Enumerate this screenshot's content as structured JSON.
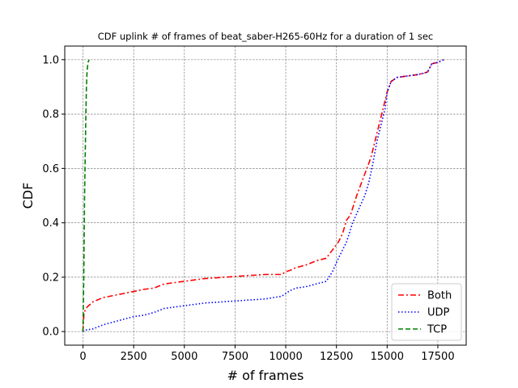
{
  "chart_data": {
    "type": "line",
    "title": "CDF uplink # of frames of beat_saber-H265-60Hz for a duration of 1 sec",
    "xlabel": "# of frames",
    "ylabel": "CDF",
    "xlim": [
      -900,
      18900
    ],
    "ylim": [
      -0.05,
      1.05
    ],
    "xticks": [
      0,
      2500,
      5000,
      7500,
      10000,
      12500,
      15000,
      17500
    ],
    "xtick_labels": [
      "0",
      "2500",
      "5000",
      "7500",
      "10000",
      "12500",
      "15000",
      "17500"
    ],
    "yticks": [
      0.0,
      0.2,
      0.4,
      0.6,
      0.8,
      1.0
    ],
    "ytick_labels": [
      "0.0",
      "0.2",
      "0.4",
      "0.6",
      "0.8",
      "1.0"
    ],
    "grid": true,
    "legend_position": "lower-right",
    "series": [
      {
        "name": "Both",
        "color": "#ff0000",
        "dash": "dashdot",
        "x": [
          0,
          50,
          200,
          500,
          1000,
          2000,
          3000,
          3500,
          4000,
          5000,
          6000,
          7000,
          8000,
          9000,
          9800,
          10000,
          10200,
          10500,
          11000,
          11500,
          12000,
          12300,
          12600,
          12800,
          13000,
          13200,
          13500,
          13800,
          14000,
          14200,
          14400,
          14600,
          14800,
          15000,
          15200,
          15500,
          16000,
          16500,
          16800,
          17000,
          17200,
          17500,
          17800
        ],
        "y": [
          0.0,
          0.07,
          0.09,
          0.11,
          0.125,
          0.14,
          0.155,
          0.16,
          0.175,
          0.185,
          0.195,
          0.2,
          0.205,
          0.21,
          0.21,
          0.22,
          0.225,
          0.235,
          0.245,
          0.26,
          0.27,
          0.3,
          0.33,
          0.36,
          0.41,
          0.43,
          0.5,
          0.56,
          0.6,
          0.64,
          0.7,
          0.76,
          0.82,
          0.88,
          0.92,
          0.935,
          0.94,
          0.945,
          0.95,
          0.955,
          0.985,
          0.99,
          1.0
        ]
      },
      {
        "name": "UDP",
        "color": "#0000ff",
        "dash": "dotted",
        "x": [
          0,
          100,
          500,
          1000,
          2000,
          2500,
          3000,
          3500,
          4000,
          5000,
          6000,
          7000,
          8000,
          9000,
          9800,
          10200,
          10500,
          11000,
          11500,
          12000,
          12300,
          12600,
          13000,
          13300,
          13600,
          13900,
          14100,
          14300,
          14500,
          14700,
          14900,
          15000,
          15200,
          15500,
          16000,
          16500,
          16800,
          17000,
          17200,
          17500,
          17800
        ],
        "y": [
          0.0,
          0.005,
          0.01,
          0.025,
          0.045,
          0.055,
          0.06,
          0.07,
          0.085,
          0.095,
          0.105,
          0.11,
          0.115,
          0.12,
          0.13,
          0.15,
          0.16,
          0.165,
          0.175,
          0.185,
          0.22,
          0.27,
          0.33,
          0.4,
          0.45,
          0.5,
          0.55,
          0.62,
          0.7,
          0.76,
          0.82,
          0.88,
          0.92,
          0.935,
          0.94,
          0.945,
          0.95,
          0.955,
          0.985,
          0.99,
          1.0
        ]
      },
      {
        "name": "TCP",
        "color": "#008000",
        "dash": "dashed",
        "x": [
          0,
          20,
          40,
          60,
          80,
          110,
          140,
          170,
          200,
          250,
          300
        ],
        "y": [
          0.0,
          0.1,
          0.2,
          0.35,
          0.5,
          0.65,
          0.8,
          0.9,
          0.96,
          0.99,
          1.0
        ]
      }
    ]
  }
}
